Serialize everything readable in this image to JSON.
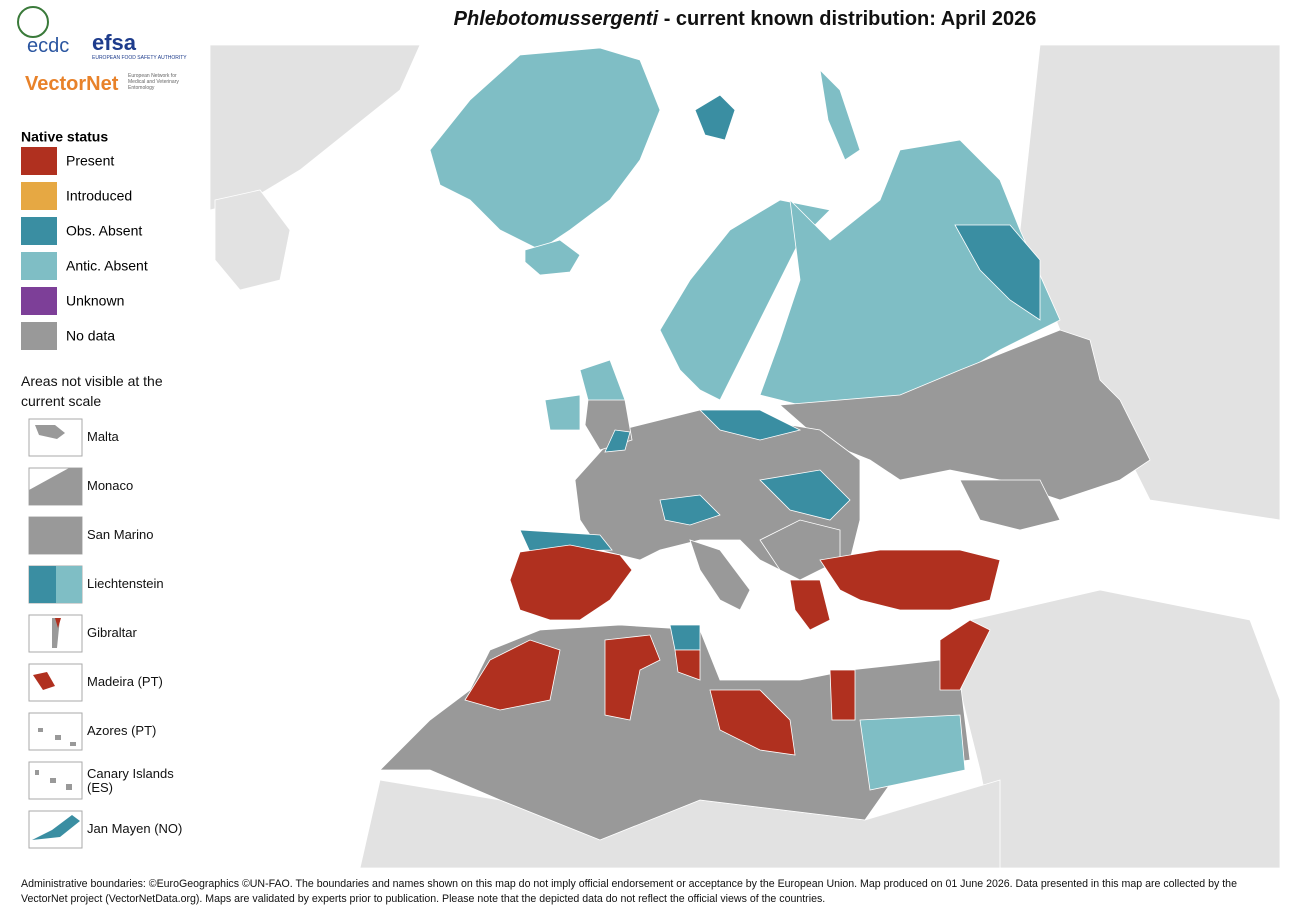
{
  "header": {
    "title_species": "Phlebotomussergenti",
    "title_rest": "- current known distribution: April 2026"
  },
  "logos": {
    "ecdc": "ecdc",
    "efsa": "efsa",
    "efsa_sub": "EUROPEAN FOOD SAFETY AUTHORITY",
    "vectornet": "VectorNet",
    "vectornet_sub": "European Network for Medical and Veterinary Entomology"
  },
  "legend": {
    "title": "Native status",
    "items": [
      {
        "label": "Present",
        "color": "#b0301f"
      },
      {
        "label": "Introduced",
        "color": "#e6a843"
      },
      {
        "label": "Obs. Absent",
        "color": "#3a8ea2"
      },
      {
        "label": "Antic. Absent",
        "color": "#7fbec5"
      },
      {
        "label": "Unknown",
        "color": "#7d3f98"
      },
      {
        "label": "No data",
        "color": "#999999"
      }
    ]
  },
  "areas": {
    "title": "Areas not visible at the current scale",
    "items": [
      "Malta",
      "Monaco",
      "San Marino",
      "Liechtenstein",
      "Gibraltar",
      "Madeira (PT)",
      "Azores (PT)",
      "Canary Islands (ES)",
      "Jan Mayen (NO)"
    ]
  },
  "footer": "Administrative boundaries: ©EuroGeographics ©UN-FAO. The boundaries and names shown on this map do not imply official endorsement or acceptance by the European Union. Map produced on 01 June 2026. Data presented in this map are collected by the VectorNet project (VectorNetData.org). Maps are validated by experts prior to publication. Please note that the depicted data do not reflect the official views of the countries."
}
